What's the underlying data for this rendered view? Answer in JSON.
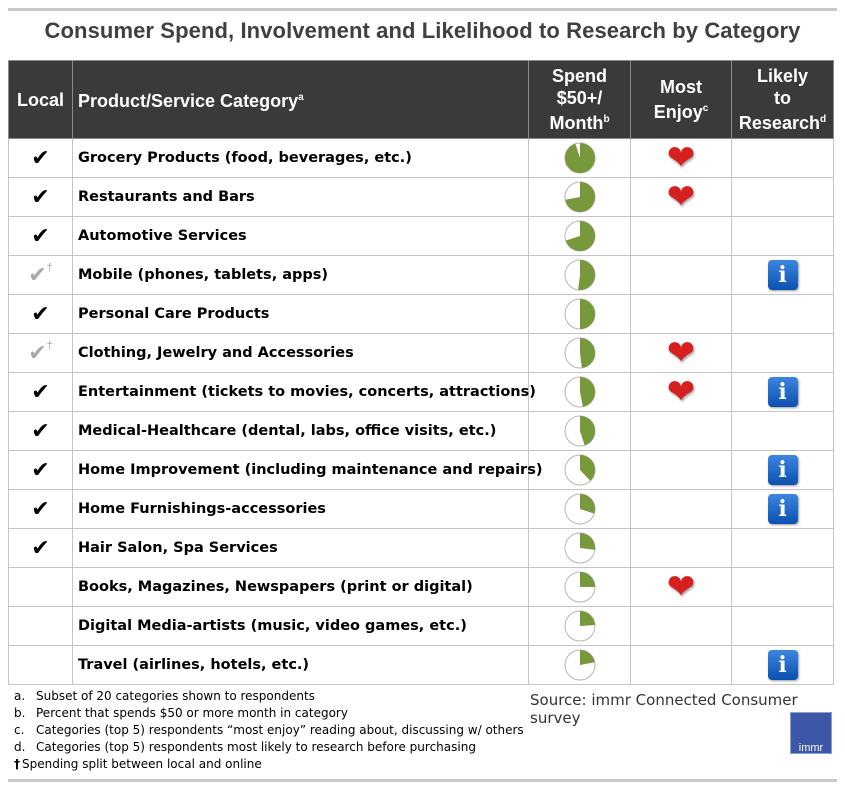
{
  "title": "Consumer Spend, Involvement and Likelihood to Research  by Category",
  "headers": {
    "local": "Local",
    "category": "Product/Service Category",
    "category_sup": "a",
    "spend_line1": "Spend",
    "spend_line2": "$50+/",
    "spend_line3": "Month",
    "spend_sup": "b",
    "enjoy_line1": "Most",
    "enjoy_line2": "Enjoy",
    "enjoy_sup": "c",
    "research_line1": "Likely",
    "research_line2": "to",
    "research_line3": "Research",
    "research_sup": "d"
  },
  "symbols": {
    "check": "✔",
    "dagger": "†",
    "heart": "❤",
    "info": "i"
  },
  "rows": [
    {
      "category": "Grocery Products (food, beverages, etc.)",
      "local": "check",
      "spend_fraction": 0.95,
      "enjoy": true,
      "research": false
    },
    {
      "category": "Restaurants and Bars",
      "local": "check",
      "spend_fraction": 0.72,
      "enjoy": true,
      "research": false
    },
    {
      "category": "Automotive Services",
      "local": "check",
      "spend_fraction": 0.7,
      "enjoy": false,
      "research": false
    },
    {
      "category": "Mobile (phones, tablets, apps)",
      "local": "split",
      "spend_fraction": 0.52,
      "enjoy": false,
      "research": true
    },
    {
      "category": "Personal Care Products",
      "local": "check",
      "spend_fraction": 0.5,
      "enjoy": false,
      "research": false
    },
    {
      "category": "Clothing, Jewelry and Accessories",
      "local": "split",
      "spend_fraction": 0.48,
      "enjoy": true,
      "research": false
    },
    {
      "category": "Entertainment (tickets to movies, concerts, attractions)",
      "local": "check",
      "spend_fraction": 0.47,
      "enjoy": true,
      "research": true
    },
    {
      "category": "Medical-Healthcare (dental, labs, office visits, etc.)",
      "local": "check",
      "spend_fraction": 0.45,
      "enjoy": false,
      "research": false
    },
    {
      "category": "Home Improvement (including maintenance and repairs)",
      "local": "check",
      "spend_fraction": 0.38,
      "enjoy": false,
      "research": true
    },
    {
      "category": "Home Furnishings-accessories",
      "local": "check",
      "spend_fraction": 0.3,
      "enjoy": false,
      "research": true
    },
    {
      "category": "Hair Salon, Spa Services",
      "local": "check",
      "spend_fraction": 0.27,
      "enjoy": false,
      "research": false
    },
    {
      "category": "Books, Magazines, Newspapers (print or digital)",
      "local": "none",
      "spend_fraction": 0.25,
      "enjoy": true,
      "research": false
    },
    {
      "category": "Digital Media-artists (music, video games, etc.)",
      "local": "none",
      "spend_fraction": 0.24,
      "enjoy": false,
      "research": false
    },
    {
      "category": "Travel (airlines, hotels, etc.)",
      "local": "none",
      "spend_fraction": 0.22,
      "enjoy": false,
      "research": true
    }
  ],
  "notes": [
    {
      "label": "a.",
      "text": "Subset of 20 categories shown to respondents"
    },
    {
      "label": "b.",
      "text": "Percent that spends $50 or more month in category"
    },
    {
      "label": "c.",
      "text": "Categories (top 5) respondents “most enjoy” reading about, discussing  w/ others"
    },
    {
      "label": "d.",
      "text": "Categories (top 5) respondents most likely to research before purchasing"
    }
  ],
  "dagger_note": "Spending split between local and online",
  "source": "Source:  immr Connected  Consumer survey",
  "logo_text": "immr",
  "colors": {
    "header_bg": "#3a3a3a",
    "pie_fill": "#77993b",
    "heart": "#d61f1f",
    "info": "#1a5fc4"
  }
}
